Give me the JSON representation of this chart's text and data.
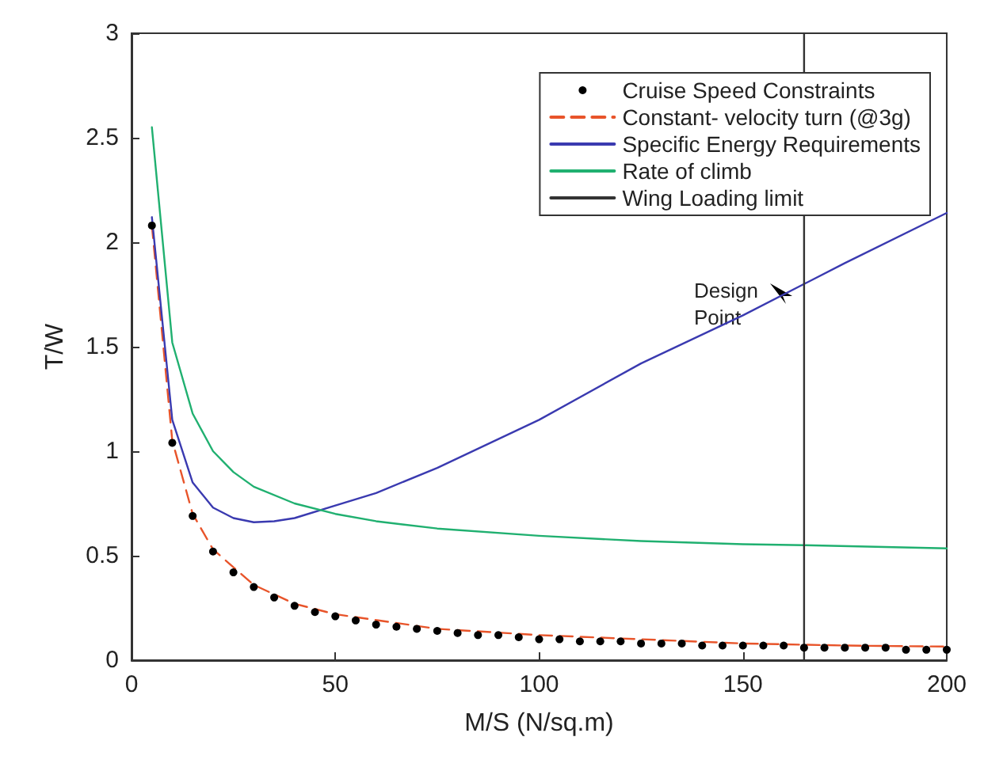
{
  "chart_data": {
    "type": "line",
    "xlabel": "M/S (N/sq.m)",
    "ylabel": "T/W",
    "xlim": [
      0,
      200
    ],
    "xticks": [
      0,
      50,
      100,
      150,
      200
    ],
    "ylim": [
      0,
      3
    ],
    "yticks": [
      0,
      0.5,
      1,
      1.5,
      2,
      2.5,
      3
    ],
    "grid": false,
    "legend": "top right",
    "series": [
      {
        "name": "Cruise Speed Constraints",
        "type": "scatter",
        "marker": "circle",
        "color": "#000000",
        "x": [
          5,
          10,
          15,
          20,
          25,
          30,
          35,
          40,
          45,
          50,
          55,
          60,
          65,
          70,
          75,
          80,
          85,
          90,
          95,
          100,
          105,
          110,
          115,
          120,
          125,
          130,
          135,
          140,
          145,
          150,
          155,
          160,
          165,
          170,
          175,
          180,
          185,
          190,
          195,
          200
        ],
        "values": [
          2.08,
          1.04,
          0.69,
          0.52,
          0.42,
          0.35,
          0.3,
          0.26,
          0.23,
          0.21,
          0.19,
          0.17,
          0.16,
          0.15,
          0.14,
          0.13,
          0.12,
          0.12,
          0.11,
          0.1,
          0.1,
          0.09,
          0.09,
          0.09,
          0.08,
          0.08,
          0.08,
          0.07,
          0.07,
          0.07,
          0.07,
          0.07,
          0.06,
          0.06,
          0.06,
          0.06,
          0.06,
          0.05,
          0.05,
          0.05
        ]
      },
      {
        "name": "Constant- velocity turn (@3g)",
        "line_style": "dashed",
        "color": "#e8542a",
        "x": [
          5,
          10,
          15,
          20,
          30,
          40,
          50,
          75,
          100,
          125,
          150,
          175,
          200
        ],
        "values": [
          2.08,
          1.05,
          0.7,
          0.53,
          0.36,
          0.27,
          0.22,
          0.15,
          0.12,
          0.1,
          0.08,
          0.07,
          0.065
        ]
      },
      {
        "name": "Specific Energy Requirements",
        "line_style": "solid",
        "color": "#3a3ab0",
        "x": [
          5,
          10,
          15,
          20,
          25,
          30,
          35,
          40,
          50,
          60,
          75,
          100,
          125,
          150,
          165,
          175,
          200
        ],
        "values": [
          2.12,
          1.15,
          0.85,
          0.73,
          0.68,
          0.66,
          0.665,
          0.68,
          0.74,
          0.8,
          0.92,
          1.15,
          1.42,
          1.65,
          1.8,
          1.9,
          2.14
        ]
      },
      {
        "name": "Rate of climb",
        "line_style": "solid",
        "color": "#20b070",
        "x": [
          5,
          10,
          15,
          20,
          25,
          30,
          40,
          50,
          60,
          75,
          100,
          125,
          150,
          165,
          200
        ],
        "values": [
          2.55,
          1.52,
          1.18,
          1,
          0.9,
          0.83,
          0.75,
          0.7,
          0.665,
          0.63,
          0.595,
          0.57,
          0.555,
          0.55,
          0.535
        ]
      },
      {
        "name": "Wing Loading limit",
        "line_style": "solid",
        "color": "#333333",
        "x": [
          165,
          165
        ],
        "values": [
          0,
          3
        ]
      }
    ],
    "annotations": [
      "Design Point"
    ]
  }
}
